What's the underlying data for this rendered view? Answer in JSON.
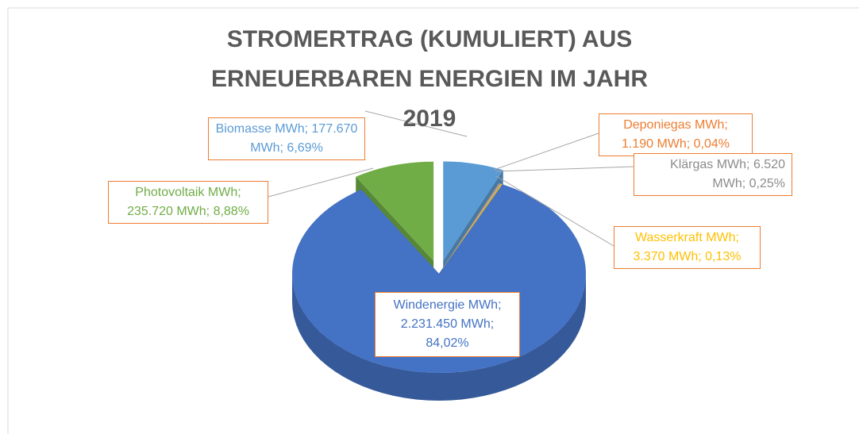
{
  "chart_data": {
    "type": "pie3d",
    "title": "STROMERTRAG (KUMULIERT) AUS ERNEUERBAREN ENERGIEN IM JAHR 2019",
    "categories": [
      "Biomasse MWh;",
      "Deponiegas MWh;",
      "Klärgas MWh;",
      "Wasserkraft MWh;",
      "Windenergie MWh;",
      "Photovoltaik MWh;"
    ],
    "values": [
      177670,
      1190,
      6520,
      3370,
      2231450,
      235720
    ],
    "value_labels": [
      "177.670 MWh; 6,69%",
      "1.190 MWh; 0,04%",
      "6.520 MWh; 0,25%",
      "3.370 MWh; 0,13%",
      "2.231.450 MWh; 84,02%",
      "235.720 MWh; 8,88%"
    ],
    "colors": [
      "#5b9bd5",
      "#ed7d31",
      "#a5a5a5",
      "#ffc000",
      "#4472c4",
      "#70ad47"
    ],
    "exploded": [
      true,
      false,
      false,
      false,
      false,
      true
    ]
  }
}
